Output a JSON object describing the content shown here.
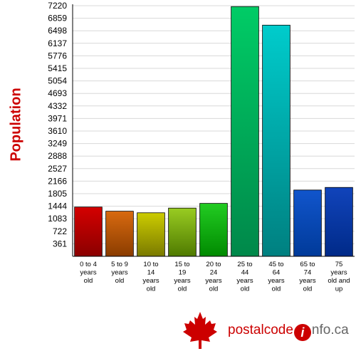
{
  "chart_data": {
    "type": "bar",
    "ylabel": "Population",
    "xlabel": "",
    "title": "",
    "ylim": [
      0,
      7220
    ],
    "yticks": [
      361,
      722,
      1083,
      1444,
      1805,
      2166,
      2527,
      2888,
      3249,
      3610,
      3971,
      4332,
      4693,
      5054,
      5415,
      5776,
      6137,
      6498,
      6859,
      7220
    ],
    "grid": true,
    "categories": [
      [
        "0 to 4",
        "years",
        "old"
      ],
      [
        "5 to 9",
        "years",
        "old"
      ],
      [
        "10 to",
        "14",
        "years",
        "old"
      ],
      [
        "15 to",
        "19",
        "years",
        "old"
      ],
      [
        "20 to",
        "24",
        "years",
        "old"
      ],
      [
        "25 to",
        "44",
        "years",
        "old"
      ],
      [
        "45 to",
        "64",
        "years",
        "old"
      ],
      [
        "65 to",
        "74",
        "years",
        "old"
      ],
      [
        "75",
        "years",
        "old and",
        "up"
      ]
    ],
    "values": [
      1420,
      1300,
      1255,
      1390,
      1525,
      7195,
      6660,
      1910,
      1985
    ],
    "colors": [
      [
        "#d40000",
        "#8a0000"
      ],
      [
        "#d86a10",
        "#8a3c00"
      ],
      [
        "#cccc00",
        "#7a7a00"
      ],
      [
        "#99cc22",
        "#4f7a00"
      ],
      [
        "#22cc22",
        "#008a00"
      ],
      [
        "#00cc66",
        "#00884a"
      ],
      [
        "#00cccc",
        "#008080"
      ],
      [
        "#1155cc",
        "#003a99"
      ],
      [
        "#1144bb",
        "#002a88"
      ]
    ]
  },
  "logo": {
    "part1": "postal",
    "part2": "code",
    "i": "i",
    "part3": "nfo.ca"
  }
}
